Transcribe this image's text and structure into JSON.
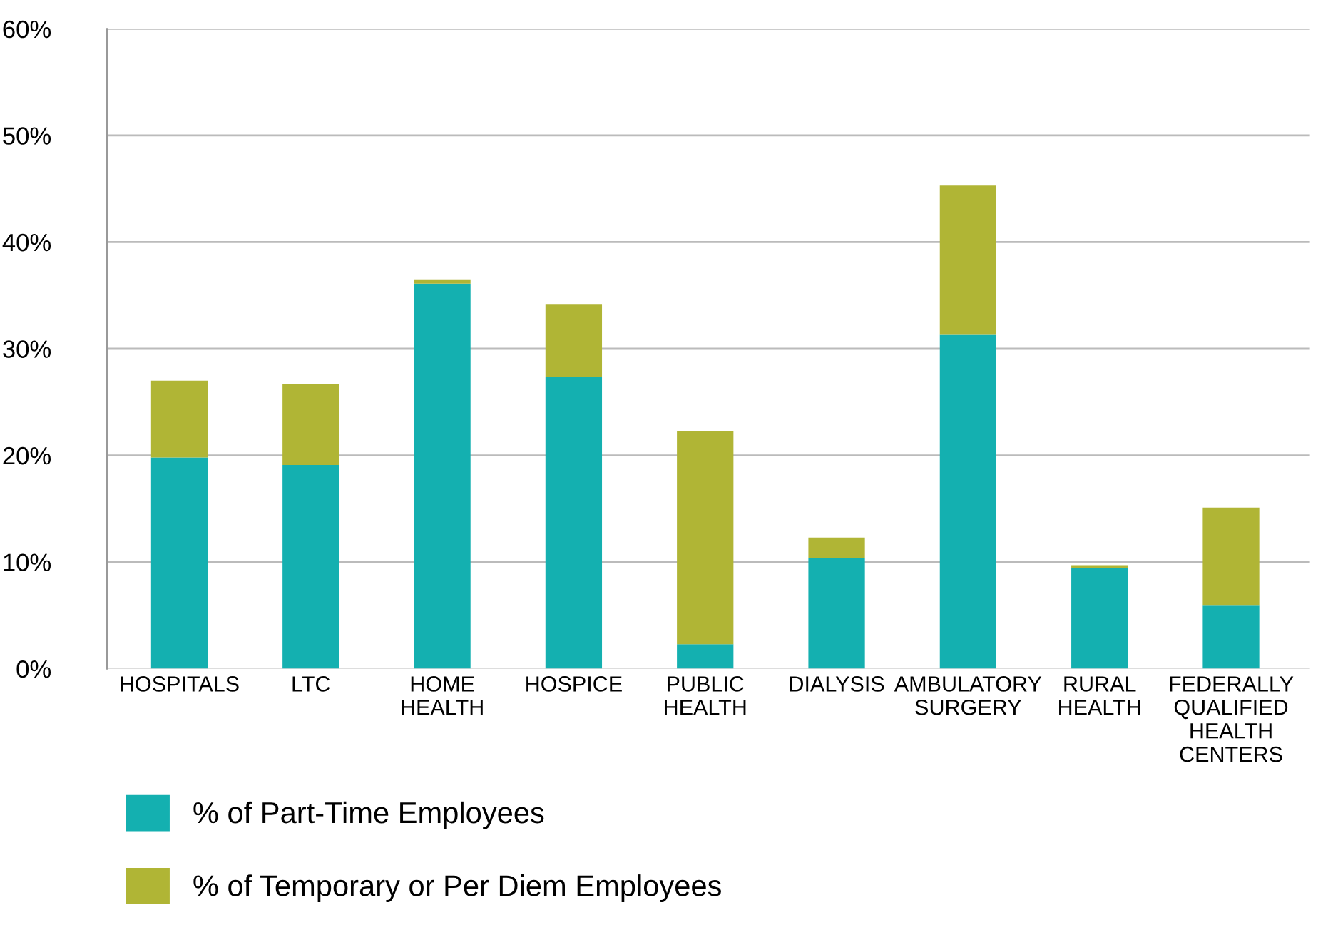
{
  "chart_data": {
    "type": "bar",
    "stacked": true,
    "categories": [
      "HOSPITALS",
      "LTC",
      "HOME\nHEALTH",
      "HOSPICE",
      "PUBLIC\nHEALTH",
      "DIALYSIS",
      "AMBULATORY\nSURGERY",
      "RURAL\nHEALTH",
      "FEDERALLY\nQUALIFIED\nHEALTH\nCENTERS"
    ],
    "series": [
      {
        "name": "% of Part-Time Employees",
        "color": "#14b0b0",
        "values": [
          19.8,
          19.1,
          36.1,
          27.4,
          2.3,
          10.4,
          31.3,
          9.4,
          5.9
        ]
      },
      {
        "name": "% of Temporary or Per Diem Employees",
        "color": "#b0b535",
        "values": [
          7.2,
          7.6,
          0.4,
          6.8,
          20.0,
          1.9,
          14.0,
          0.3,
          9.2
        ]
      }
    ],
    "ylim": [
      0,
      60
    ],
    "yticks": [
      {
        "value": 0,
        "label": "0%"
      },
      {
        "value": 10,
        "label": "10%"
      },
      {
        "value": 20,
        "label": "20%"
      },
      {
        "value": 30,
        "label": "30%"
      },
      {
        "value": 40,
        "label": "40%"
      },
      {
        "value": 50,
        "label": "50%"
      },
      {
        "value": 60,
        "label": "60%"
      }
    ],
    "grid": "y",
    "legend": "bottom left"
  }
}
